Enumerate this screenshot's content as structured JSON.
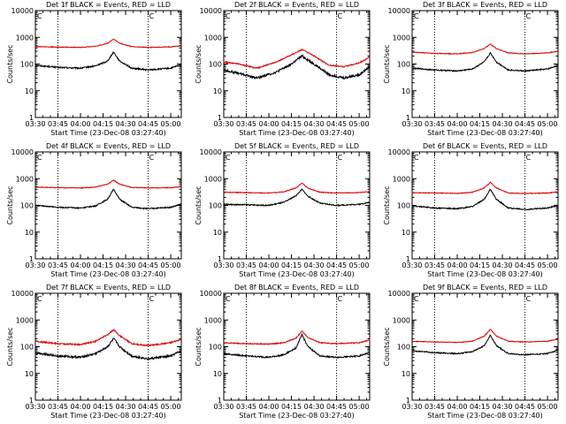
{
  "figure": {
    "ylabel": "Counts/sec",
    "xlabel": "Start Time (23-Dec-08 03:27:40)"
  },
  "colors": {
    "events": "#000000",
    "lld": "#dd0000",
    "axes": "#000000",
    "marker": "#000000"
  },
  "chart_data": [
    {
      "type": "line",
      "title": "Det 1f BLACK = Events, RED = LLD",
      "xlabel": "Start Time (23-Dec-08 03:27:40)",
      "ylabel": "Counts/sec",
      "x_range": [
        "03:30",
        "05:07"
      ],
      "y_scale": "log",
      "ylim": [
        1,
        10000
      ],
      "x_ticks": [
        "03:30",
        "03:45",
        "04:00",
        "04:15",
        "04:30",
        "04:45",
        "05:00"
      ],
      "y_ticks": [
        "1",
        "10",
        "100",
        "1000",
        "10000"
      ],
      "vlines": [
        "03:45",
        "04:45"
      ],
      "marker_label": "C",
      "marker_at": "04:45",
      "series": [
        {
          "name": "Events",
          "color": "#000000",
          "noise": 0.06,
          "x": [
            "03:30",
            "03:45",
            "04:00",
            "04:10",
            "04:18",
            "04:22",
            "04:26",
            "04:34",
            "04:45",
            "05:00",
            "05:07"
          ],
          "y": [
            90,
            75,
            70,
            85,
            130,
            280,
            130,
            70,
            60,
            70,
            95
          ]
        },
        {
          "name": "LLD",
          "color": "#dd0000",
          "noise": 0.03,
          "x": [
            "03:30",
            "03:45",
            "04:00",
            "04:10",
            "04:18",
            "04:22",
            "04:26",
            "04:34",
            "04:45",
            "05:00",
            "05:07"
          ],
          "y": [
            450,
            430,
            420,
            460,
            600,
            850,
            600,
            450,
            420,
            440,
            480
          ]
        }
      ]
    },
    {
      "type": "line",
      "title": "Det 2f BLACK = Events, RED = LLD",
      "xlabel": "Start Time (23-Dec-08 03:27:40)",
      "ylabel": "Counts/sec",
      "x_range": [
        "03:30",
        "05:07"
      ],
      "y_scale": "log",
      "ylim": [
        1,
        10000
      ],
      "x_ticks": [
        "03:30",
        "03:45",
        "04:00",
        "04:15",
        "04:30",
        "04:45",
        "05:00"
      ],
      "y_ticks": [
        "1",
        "10",
        "100",
        "1000",
        "10000"
      ],
      "vlines": [
        "03:45",
        "04:45"
      ],
      "marker_label": "C",
      "marker_at": "04:45",
      "series": [
        {
          "name": "Events",
          "color": "#000000",
          "noise": 0.1,
          "x": [
            "03:30",
            "03:40",
            "03:52",
            "04:05",
            "04:15",
            "04:22",
            "04:30",
            "04:40",
            "04:50",
            "05:00",
            "05:07"
          ],
          "y": [
            60,
            45,
            30,
            50,
            100,
            200,
            100,
            40,
            30,
            40,
            80
          ]
        },
        {
          "name": "LLD",
          "color": "#dd0000",
          "noise": 0.05,
          "x": [
            "03:30",
            "03:40",
            "03:52",
            "04:05",
            "04:15",
            "04:22",
            "04:30",
            "04:40",
            "04:50",
            "05:00",
            "05:07"
          ],
          "y": [
            120,
            100,
            70,
            120,
            220,
            350,
            200,
            90,
            80,
            110,
            180
          ]
        }
      ]
    },
    {
      "type": "line",
      "title": "Det 3f BLACK = Events, RED = LLD",
      "xlabel": "Start Time (23-Dec-08 03:27:40)",
      "ylabel": "Counts/sec",
      "x_range": [
        "03:30",
        "05:07"
      ],
      "y_scale": "log",
      "ylim": [
        1,
        10000
      ],
      "x_ticks": [
        "03:30",
        "03:45",
        "04:00",
        "04:15",
        "04:30",
        "04:45",
        "05:00"
      ],
      "y_ticks": [
        "1",
        "10",
        "100",
        "1000",
        "10000"
      ],
      "vlines": [
        "03:45",
        "04:45"
      ],
      "marker_label": "C",
      "marker_at": "04:45",
      "series": [
        {
          "name": "Events",
          "color": "#000000",
          "noise": 0.05,
          "x": [
            "03:30",
            "03:45",
            "04:00",
            "04:10",
            "04:18",
            "04:22",
            "04:26",
            "04:34",
            "04:45",
            "05:00",
            "05:07"
          ],
          "y": [
            70,
            60,
            55,
            65,
            120,
            260,
            120,
            60,
            55,
            65,
            90
          ]
        },
        {
          "name": "LLD",
          "color": "#dd0000",
          "noise": 0.03,
          "x": [
            "03:30",
            "03:45",
            "04:00",
            "04:10",
            "04:18",
            "04:22",
            "04:26",
            "04:34",
            "04:45",
            "05:00",
            "05:07"
          ],
          "y": [
            280,
            250,
            240,
            270,
            380,
            560,
            380,
            260,
            240,
            260,
            300
          ]
        }
      ]
    },
    {
      "type": "line",
      "title": "Det 4f BLACK = Events, RED = LLD",
      "xlabel": "Start Time (23-Dec-08 03:27:40)",
      "ylabel": "Counts/sec",
      "x_range": [
        "03:30",
        "05:07"
      ],
      "y_scale": "log",
      "ylim": [
        1,
        10000
      ],
      "x_ticks": [
        "03:30",
        "03:45",
        "04:00",
        "04:15",
        "04:30",
        "04:45",
        "05:00"
      ],
      "y_ticks": [
        "1",
        "10",
        "100",
        "1000",
        "10000"
      ],
      "vlines": [
        "03:45",
        "04:45"
      ],
      "marker_label": "C",
      "marker_at": "04:45",
      "series": [
        {
          "name": "Events",
          "color": "#000000",
          "noise": 0.05,
          "x": [
            "03:30",
            "03:45",
            "04:00",
            "04:10",
            "04:18",
            "04:22",
            "04:26",
            "04:34",
            "04:45",
            "05:00",
            "05:07"
          ],
          "y": [
            100,
            85,
            80,
            95,
            170,
            400,
            170,
            85,
            75,
            85,
            110
          ]
        },
        {
          "name": "LLD",
          "color": "#dd0000",
          "noise": 0.03,
          "x": [
            "03:30",
            "03:45",
            "04:00",
            "04:10",
            "04:18",
            "04:22",
            "04:26",
            "04:34",
            "04:45",
            "05:00",
            "05:07"
          ],
          "y": [
            480,
            460,
            450,
            480,
            620,
            880,
            620,
            470,
            450,
            460,
            500
          ]
        }
      ]
    },
    {
      "type": "line",
      "title": "Det 5f BLACK = Events, RED = LLD",
      "xlabel": "Start Time (23-Dec-08 03:27:40)",
      "ylabel": "Counts/sec",
      "x_range": [
        "03:30",
        "05:07"
      ],
      "y_scale": "log",
      "ylim": [
        1,
        10000
      ],
      "x_ticks": [
        "03:30",
        "03:45",
        "04:00",
        "04:15",
        "04:30",
        "04:45",
        "05:00"
      ],
      "y_ticks": [
        "1",
        "10",
        "100",
        "1000",
        "10000"
      ],
      "vlines": [
        "03:45",
        "04:45"
      ],
      "marker_label": "C",
      "marker_at": "04:45",
      "series": [
        {
          "name": "Events",
          "color": "#000000",
          "noise": 0.05,
          "x": [
            "03:30",
            "03:45",
            "04:00",
            "04:10",
            "04:18",
            "04:22",
            "04:26",
            "04:34",
            "04:45",
            "05:00",
            "05:07"
          ],
          "y": [
            110,
            105,
            100,
            130,
            230,
            400,
            220,
            120,
            100,
            110,
            130
          ]
        },
        {
          "name": "LLD",
          "color": "#dd0000",
          "noise": 0.03,
          "x": [
            "03:30",
            "03:45",
            "04:00",
            "04:10",
            "04:18",
            "04:22",
            "04:26",
            "04:34",
            "04:45",
            "05:00",
            "05:07"
          ],
          "y": [
            310,
            300,
            290,
            320,
            450,
            680,
            440,
            310,
            290,
            300,
            330
          ]
        }
      ]
    },
    {
      "type": "line",
      "title": "Det 6f BLACK = Events, RED = LLD",
      "xlabel": "Start Time (23-Dec-08 03:27:40)",
      "ylabel": "Counts/sec",
      "x_range": [
        "03:30",
        "05:07"
      ],
      "y_scale": "log",
      "ylim": [
        1,
        10000
      ],
      "x_ticks": [
        "03:30",
        "03:45",
        "04:00",
        "04:15",
        "04:30",
        "04:45",
        "05:00"
      ],
      "y_ticks": [
        "1",
        "10",
        "100",
        "1000",
        "10000"
      ],
      "vlines": [
        "03:45",
        "04:45"
      ],
      "marker_label": "C",
      "marker_at": "04:45",
      "series": [
        {
          "name": "Events",
          "color": "#000000",
          "noise": 0.05,
          "x": [
            "03:30",
            "03:45",
            "04:00",
            "04:10",
            "04:18",
            "04:22",
            "04:26",
            "04:34",
            "04:45",
            "05:00",
            "05:07"
          ],
          "y": [
            95,
            80,
            75,
            90,
            170,
            400,
            170,
            80,
            70,
            80,
            100
          ]
        },
        {
          "name": "LLD",
          "color": "#dd0000",
          "noise": 0.03,
          "x": [
            "03:30",
            "03:45",
            "04:00",
            "04:10",
            "04:18",
            "04:22",
            "04:26",
            "04:34",
            "04:45",
            "05:00",
            "05:07"
          ],
          "y": [
            300,
            290,
            280,
            310,
            450,
            720,
            450,
            290,
            280,
            290,
            320
          ]
        }
      ]
    },
    {
      "type": "line",
      "title": "Det 7f BLACK = Events, RED = LLD",
      "xlabel": "Start Time (23-Dec-08 03:27:40)",
      "ylabel": "Counts/sec",
      "x_range": [
        "03:30",
        "05:07"
      ],
      "y_scale": "log",
      "ylim": [
        1,
        10000
      ],
      "x_ticks": [
        "03:30",
        "03:45",
        "04:00",
        "04:15",
        "04:30",
        "04:45",
        "05:00"
      ],
      "y_ticks": [
        "1",
        "10",
        "100",
        "1000",
        "10000"
      ],
      "vlines": [
        "03:45",
        "04:45"
      ],
      "marker_label": "C",
      "marker_at": "04:45",
      "series": [
        {
          "name": "Events",
          "color": "#000000",
          "noise": 0.09,
          "x": [
            "03:30",
            "03:45",
            "04:00",
            "04:10",
            "04:18",
            "04:22",
            "04:26",
            "04:34",
            "04:45",
            "05:00",
            "05:07"
          ],
          "y": [
            60,
            45,
            40,
            55,
            100,
            200,
            100,
            45,
            35,
            45,
            70
          ]
        },
        {
          "name": "LLD",
          "color": "#dd0000",
          "noise": 0.06,
          "x": [
            "03:30",
            "03:45",
            "04:00",
            "04:10",
            "04:18",
            "04:22",
            "04:26",
            "04:34",
            "04:45",
            "05:00",
            "05:07"
          ],
          "y": [
            160,
            130,
            120,
            160,
            280,
            430,
            260,
            130,
            110,
            140,
            190
          ]
        }
      ]
    },
    {
      "type": "line",
      "title": "Det 8f BLACK = Events, RED = LLD",
      "xlabel": "Start Time (23-Dec-08 03:27:40)",
      "ylabel": "Counts/sec",
      "x_range": [
        "03:30",
        "05:07"
      ],
      "y_scale": "log",
      "ylim": [
        1,
        10000
      ],
      "x_ticks": [
        "03:30",
        "03:45",
        "04:00",
        "04:15",
        "04:30",
        "04:45",
        "05:00"
      ],
      "y_ticks": [
        "1",
        "10",
        "100",
        "1000",
        "10000"
      ],
      "vlines": [
        "03:45",
        "04:45"
      ],
      "marker_label": "C",
      "marker_at": "04:45",
      "series": [
        {
          "name": "Events",
          "color": "#000000",
          "noise": 0.06,
          "x": [
            "03:30",
            "03:45",
            "04:00",
            "04:10",
            "04:18",
            "04:22",
            "04:26",
            "04:34",
            "04:45",
            "05:00",
            "05:07"
          ],
          "y": [
            55,
            45,
            40,
            50,
            90,
            280,
            100,
            45,
            40,
            45,
            60
          ]
        },
        {
          "name": "LLD",
          "color": "#dd0000",
          "noise": 0.04,
          "x": [
            "03:30",
            "03:45",
            "04:00",
            "04:10",
            "04:18",
            "04:22",
            "04:26",
            "04:34",
            "04:45",
            "05:00",
            "05:07"
          ],
          "y": [
            140,
            130,
            125,
            140,
            210,
            380,
            220,
            140,
            130,
            140,
            180
          ]
        }
      ]
    },
    {
      "type": "line",
      "title": "Det 9f BLACK = Events, RED = LLD",
      "xlabel": "Start Time (23-Dec-08 03:27:40)",
      "ylabel": "Counts/sec",
      "x_range": [
        "03:30",
        "05:07"
      ],
      "y_scale": "log",
      "ylim": [
        1,
        10000
      ],
      "x_ticks": [
        "03:30",
        "03:45",
        "04:00",
        "04:15",
        "04:30",
        "04:45",
        "05:00"
      ],
      "y_ticks": [
        "1",
        "10",
        "100",
        "1000",
        "10000"
      ],
      "vlines": [
        "03:45",
        "04:45"
      ],
      "marker_label": "C",
      "marker_at": "04:45",
      "series": [
        {
          "name": "Events",
          "color": "#000000",
          "noise": 0.05,
          "x": [
            "03:30",
            "03:45",
            "04:00",
            "04:10",
            "04:18",
            "04:22",
            "04:26",
            "04:34",
            "04:45",
            "05:00",
            "05:07"
          ],
          "y": [
            70,
            60,
            55,
            65,
            110,
            270,
            110,
            55,
            50,
            55,
            75
          ]
        },
        {
          "name": "LLD",
          "color": "#dd0000",
          "noise": 0.03,
          "x": [
            "03:30",
            "03:45",
            "04:00",
            "04:10",
            "04:18",
            "04:22",
            "04:26",
            "04:34",
            "04:45",
            "05:00",
            "05:07"
          ],
          "y": [
            160,
            150,
            145,
            160,
            250,
            450,
            250,
            160,
            150,
            160,
            190
          ]
        }
      ]
    }
  ]
}
